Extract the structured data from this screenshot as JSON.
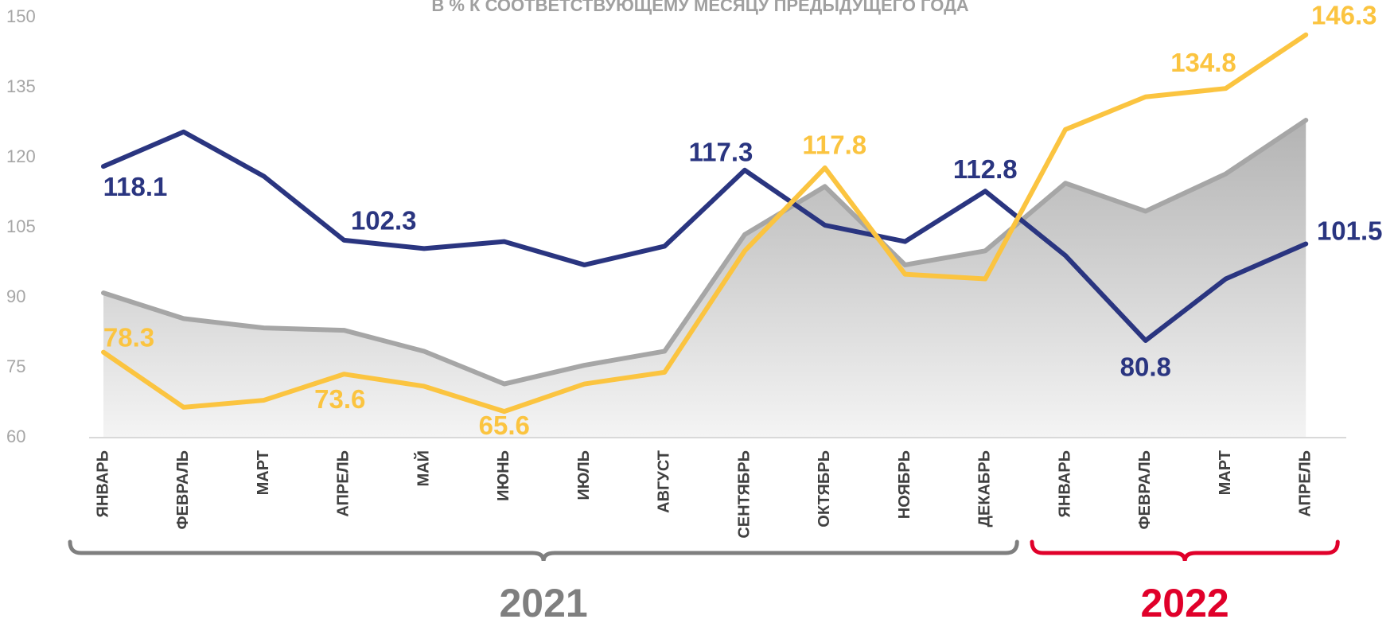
{
  "chart_data": {
    "type": "line",
    "title": "В % К СООТВЕТСТВУЮЩЕМУ МЕСЯЦУ ПРЕДЫДУЩЕГО ГОДА",
    "categories": [
      "ЯНВАРЬ",
      "ФЕВРАЛЬ",
      "МАРТ",
      "АПРЕЛЬ",
      "МАЙ",
      "ИЮНЬ",
      "ИЮЛЬ",
      "АВГУСТ",
      "СЕНТЯБРЬ",
      "ОКТЯБРЬ",
      "НОЯБРЬ",
      "ДЕКАБРЬ",
      "ЯНВАРЬ",
      "ФЕВРАЛЬ",
      "МАРТ",
      "АПРЕЛЬ"
    ],
    "series": [
      {
        "color": "#a6a6a6",
        "area": true,
        "values": [
          91,
          85.5,
          83.5,
          83,
          78.5,
          71.5,
          75.5,
          78.5,
          103.5,
          113.8,
          97,
          100,
          114.5,
          108.5,
          116.5,
          128
        ]
      },
      {
        "color": "#2a3580",
        "values": [
          118.1,
          125.5,
          116,
          102.3,
          100.5,
          102,
          97,
          101,
          117.3,
          105.5,
          102,
          112.8,
          99,
          80.8,
          94,
          101.5
        ],
        "labeled_points": [
          0,
          3,
          8,
          11,
          13,
          15
        ]
      },
      {
        "color": "#fbc440",
        "values": [
          78.3,
          66.5,
          68,
          73.6,
          71,
          65.6,
          71.5,
          74,
          100,
          117.8,
          95,
          94,
          126,
          133,
          134.8,
          146.3
        ],
        "labeled_points": [
          0,
          3,
          5,
          9,
          14,
          15
        ]
      }
    ],
    "ylim": [
      60,
      150
    ],
    "yticks": [
      60,
      75,
      90,
      105,
      120,
      135,
      150
    ],
    "groups": [
      {
        "label": "2021",
        "count": 12,
        "color": "#7f7f7f"
      },
      {
        "label": "2022",
        "count": 4,
        "color": "#e0002a"
      }
    ]
  }
}
